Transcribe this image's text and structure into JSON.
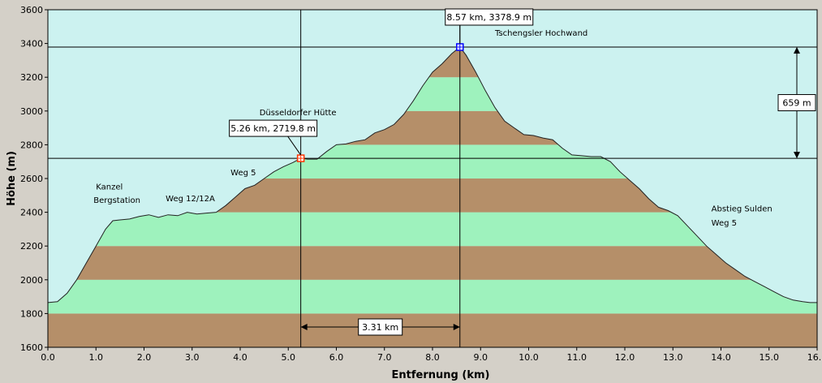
{
  "chart_data": {
    "type": "area",
    "xlabel": "Entfernung  (km)",
    "ylabel": "Höhe (m)",
    "xlim": [
      0,
      16
    ],
    "ylim": [
      1600,
      3600
    ],
    "x_ticks": [
      "0.0",
      "1.0",
      "2.0",
      "3.0",
      "4.0",
      "5.0",
      "6.0",
      "7.0",
      "8.0",
      "9.0",
      "10.0",
      "11.0",
      "12.0",
      "13.0",
      "14.0",
      "15.0",
      "16.0"
    ],
    "y_ticks": [
      "1600",
      "1800",
      "2000",
      "2200",
      "2400",
      "2600",
      "2800",
      "3000",
      "3200",
      "3400",
      "3600"
    ],
    "band_colors": {
      "sky": "#ccf2f0",
      "light": "#9ef2bd",
      "dark": "#b58f69"
    },
    "profile": {
      "x": [
        0.0,
        0.2,
        0.4,
        0.6,
        0.8,
        1.0,
        1.2,
        1.35,
        1.5,
        1.7,
        1.9,
        2.1,
        2.3,
        2.5,
        2.7,
        2.9,
        3.1,
        3.3,
        3.5,
        3.7,
        3.9,
        4.1,
        4.3,
        4.5,
        4.7,
        4.9,
        5.1,
        5.26,
        5.4,
        5.6,
        5.8,
        6.0,
        6.2,
        6.4,
        6.6,
        6.8,
        7.0,
        7.2,
        7.4,
        7.6,
        7.8,
        8.0,
        8.2,
        8.4,
        8.57,
        8.7,
        8.9,
        9.1,
        9.3,
        9.5,
        9.7,
        9.9,
        10.1,
        10.3,
        10.5,
        10.7,
        10.9,
        11.1,
        11.3,
        11.5,
        11.7,
        11.9,
        12.1,
        12.3,
        12.5,
        12.7,
        12.9,
        13.1,
        13.3,
        13.5,
        13.7,
        13.9,
        14.1,
        14.3,
        14.5,
        14.7,
        14.9,
        15.1,
        15.3,
        15.5,
        15.7,
        15.85,
        16.0
      ],
      "y": [
        1865,
        1870,
        1920,
        2000,
        2100,
        2200,
        2300,
        2350,
        2355,
        2360,
        2375,
        2385,
        2370,
        2385,
        2380,
        2400,
        2390,
        2395,
        2400,
        2440,
        2490,
        2540,
        2560,
        2600,
        2640,
        2670,
        2695,
        2720,
        2715,
        2715,
        2760,
        2800,
        2805,
        2820,
        2830,
        2870,
        2890,
        2920,
        2980,
        3060,
        3150,
        3230,
        3280,
        3340,
        3379,
        3330,
        3230,
        3120,
        3020,
        2940,
        2900,
        2860,
        2855,
        2840,
        2830,
        2780,
        2740,
        2735,
        2730,
        2730,
        2700,
        2640,
        2590,
        2540,
        2480,
        2430,
        2410,
        2380,
        2320,
        2260,
        2200,
        2150,
        2100,
        2060,
        2020,
        1990,
        1960,
        1930,
        1900,
        1880,
        1870,
        1865,
        1865
      ]
    },
    "markers": [
      {
        "x": 5.26,
        "y": 2719.8,
        "label": "5.26 km, 2719.8 m",
        "color": "#ff3300"
      },
      {
        "x": 8.57,
        "y": 3378.9,
        "label": "8.57 km, 3378.9 m",
        "color": "#0000ff"
      }
    ],
    "annotations": [
      {
        "text": "Kanzel",
        "x": 1.0,
        "y": 2535
      },
      {
        "text": "Bergstation",
        "x": 0.95,
        "y": 2455
      },
      {
        "text": "Weg 12/12A",
        "x": 2.45,
        "y": 2465
      },
      {
        "text": "Weg 5",
        "x": 3.8,
        "y": 2620
      },
      {
        "text": "Düsseldorfer Hütte",
        "x": 4.4,
        "y": 2975
      },
      {
        "text": "Tschengsler Hochwand",
        "x": 9.3,
        "y": 3445
      },
      {
        "text": "Abstieg Sulden",
        "x": 13.8,
        "y": 2405
      },
      {
        "text": "Weg 5",
        "x": 13.8,
        "y": 2320
      }
    ],
    "distance_label": "3.31 km",
    "height_diff_label": "659 m"
  }
}
